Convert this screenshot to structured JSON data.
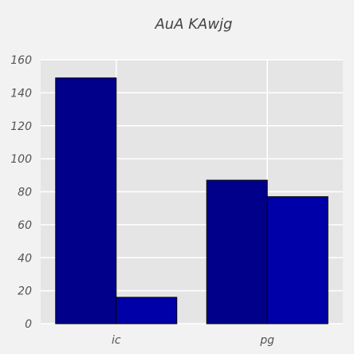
{
  "chart_data": {
    "type": "bar",
    "title": "AuA KAwjg",
    "xlabel": "",
    "ylabel": "",
    "categories": [
      "ic",
      "pg"
    ],
    "series": [
      {
        "values": [
          149,
          87
        ],
        "color": "#00008b"
      },
      {
        "values": [
          16,
          77
        ],
        "color": "#0000a8"
      }
    ],
    "ylim": [
      0,
      160
    ],
    "yticks": [
      0,
      20,
      40,
      60,
      80,
      100,
      120,
      140,
      160
    ],
    "grid": true,
    "legend": "none",
    "colors": {
      "background": "#f2f2f2",
      "plot_area": "#e5e5e5",
      "grid": "#ffffff",
      "bar_edge": "#000000"
    }
  }
}
